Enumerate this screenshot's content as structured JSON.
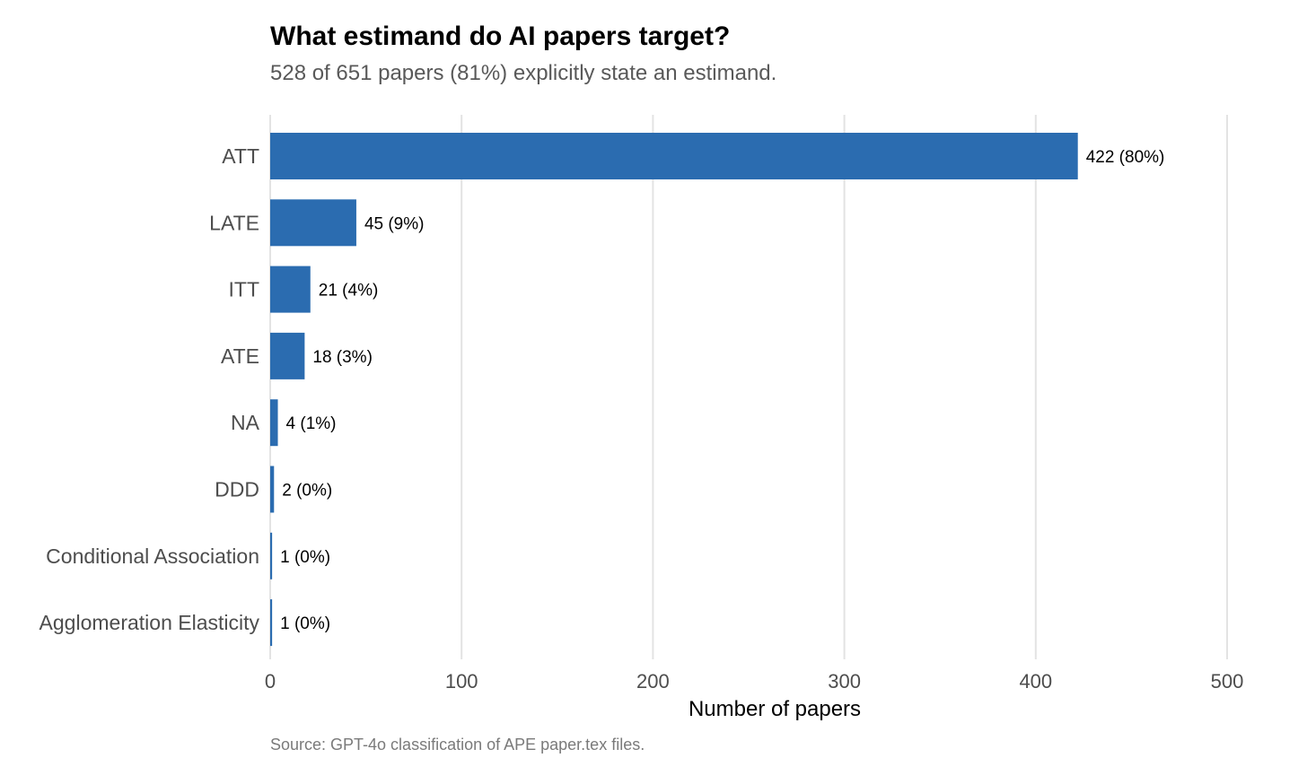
{
  "chart_data": {
    "type": "bar",
    "orientation": "horizontal",
    "title": "What estimand do AI papers target?",
    "subtitle": "528 of 651 papers (81%) explicitly state an estimand.",
    "caption": "Source: GPT-4o classification of APE paper.tex files.",
    "xlabel": "Number of papers",
    "ylabel": "",
    "xlim": [
      0,
      500
    ],
    "x_ticks": [
      0,
      100,
      200,
      300,
      400,
      500
    ],
    "grid": "vertical",
    "bar_color": "#2b6cb0",
    "categories": [
      "ATT",
      "LATE",
      "ITT",
      "ATE",
      "NA",
      "DDD",
      "Conditional Association",
      "Agglomeration Elasticity"
    ],
    "values": [
      422,
      45,
      21,
      18,
      4,
      2,
      1,
      1
    ],
    "data_labels": [
      "422 (80%)",
      "45 (9%)",
      "21 (4%)",
      "18 (3%)",
      "4 (1%)",
      "2 (0%)",
      "1 (0%)",
      "1 (0%)"
    ]
  }
}
